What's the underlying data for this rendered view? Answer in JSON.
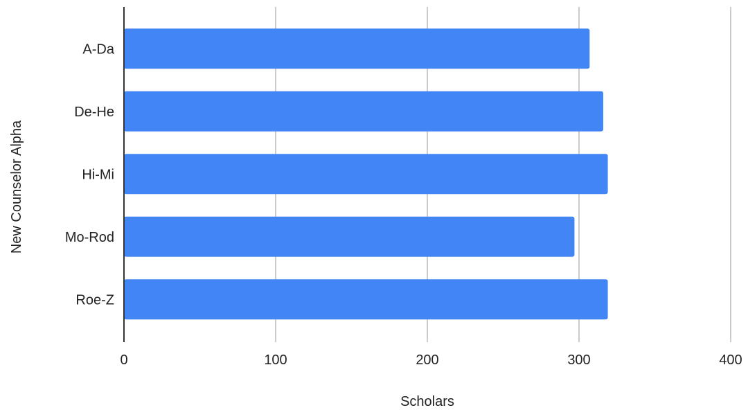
{
  "chart_data": {
    "type": "bar",
    "orientation": "horizontal",
    "categories": [
      "A-Da",
      "De-He",
      "Hi-Mi",
      "Mo-Rod",
      "Roe-Z"
    ],
    "values": [
      307,
      316,
      319,
      297,
      319
    ],
    "xlabel": "Scholars",
    "ylabel": "New Counselor Alpha",
    "xlim": [
      0,
      400
    ],
    "xticks": [
      "0",
      "100",
      "200",
      "300",
      "400"
    ],
    "grid": "vertical",
    "legend": "none",
    "bar_color": "#4285f4",
    "grid_color": "#cccccc",
    "axis_color": "#333333"
  }
}
